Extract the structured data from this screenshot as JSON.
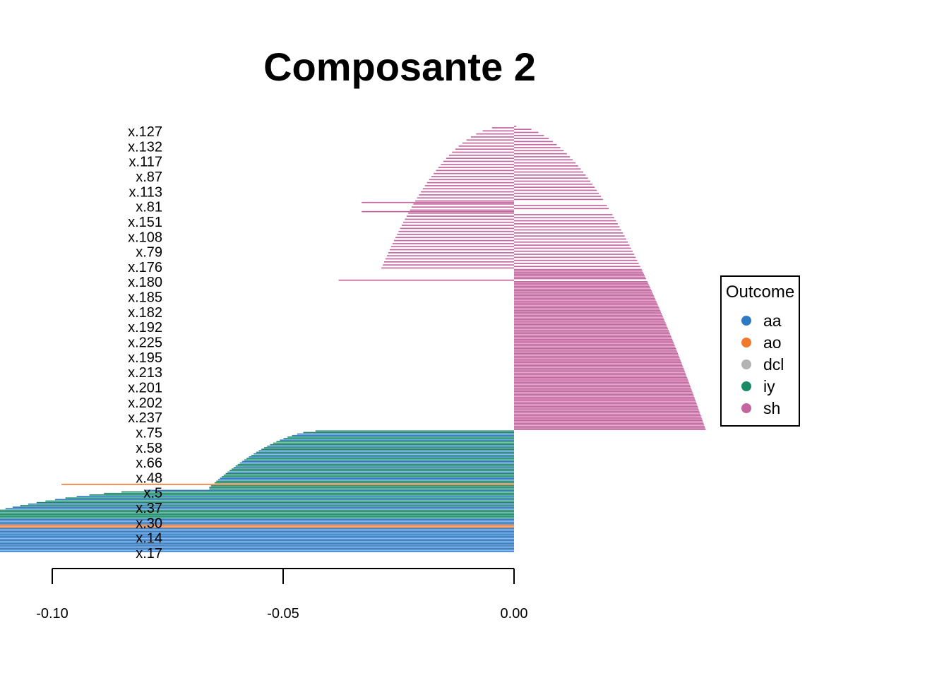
{
  "chart_data": {
    "type": "bar",
    "orientation": "horizontal",
    "title": "Composante 2",
    "xlabel": "",
    "ylabel": "",
    "xlim": [
      -0.145,
      0.045
    ],
    "x_ticks": [
      {
        "value": -0.1,
        "label": "-0.10"
      },
      {
        "value": -0.05,
        "label": "-0.05"
      },
      {
        "value": 0.0,
        "label": "0.00"
      }
    ],
    "y_tick_labels": [
      "x.127",
      "x.132",
      "x.117",
      "x.87",
      "x.113",
      "x.81",
      "x.151",
      "x.108",
      "x.79",
      "x.176",
      "x.180",
      "x.185",
      "x.182",
      "x.192",
      "x.225",
      "x.195",
      "x.213",
      "x.201",
      "x.202",
      "x.237",
      "x.75",
      "x.58",
      "x.66",
      "x.48",
      "x.5",
      "x.37",
      "x.30",
      "x.14",
      "x.17"
    ],
    "legend": {
      "title": "Outcome",
      "position": "right",
      "entries": [
        {
          "label": "aa",
          "color": "#2f7ac6"
        },
        {
          "label": "ao",
          "color": "#f2792c"
        },
        {
          "label": "dcl",
          "color": "#b3b3b3"
        },
        {
          "label": "iy",
          "color": "#188a6a"
        },
        {
          "label": "sh",
          "color": "#c5659f"
        }
      ]
    },
    "segments": [
      {
        "outcome": "sh",
        "count": 200,
        "start": 0.0005,
        "end": 0.0415,
        "pattern": "top_mixed"
      },
      {
        "outcome": "iy",
        "count": 38,
        "start": -0.043,
        "end": -0.066,
        "mixed_with": "aa"
      },
      {
        "outcome": "aa",
        "count": 42,
        "start": -0.066,
        "end": -0.14,
        "mixed_with": "iy"
      }
    ],
    "orange_bars": [
      -0.098,
      -0.131,
      -0.132
    ],
    "negative_sh_bars": [
      -0.033,
      -0.033,
      -0.038
    ]
  }
}
